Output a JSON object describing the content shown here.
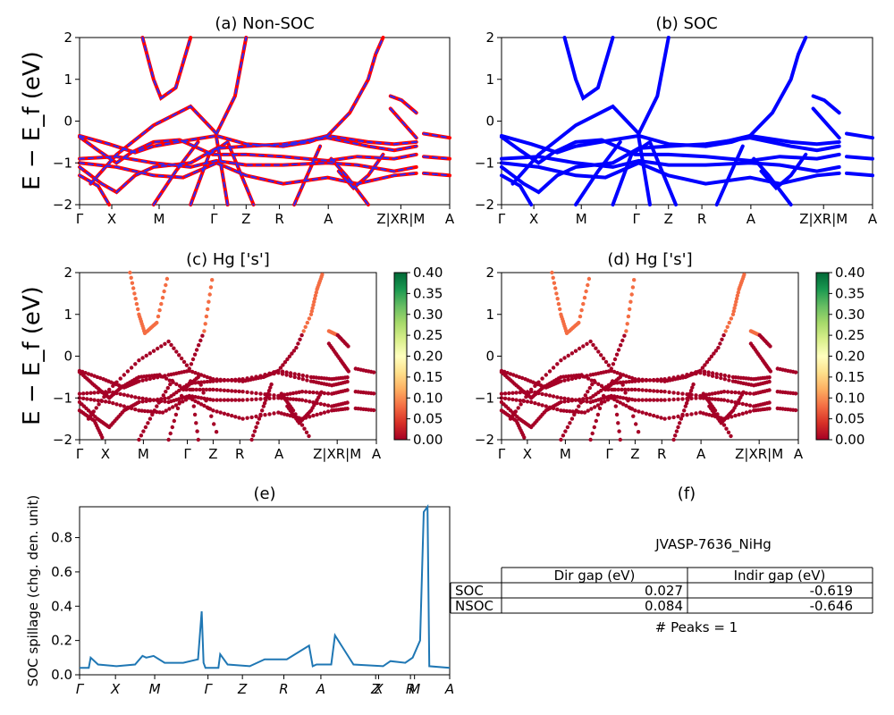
{
  "titles": {
    "a": "(a) Non-SOC",
    "b": "(b) SOC",
    "c": "(c)  Hg ['s']",
    "d": "(d) Hg ['s']",
    "e": "(e)",
    "f": "(f)"
  },
  "band_ylabel": "E − E_f (eV)",
  "band_yticks": [
    "2",
    "1",
    "0",
    "−1",
    "−2"
  ],
  "band_kticks_ab": [
    "Γ",
    "X",
    "M",
    "Γ",
    "Z",
    "R",
    "A",
    "Z|XR|M",
    "A"
  ],
  "band_kticks_cd": [
    "Γ",
    "X",
    "M",
    "Γ",
    "Z",
    "R",
    "A",
    "Z|XR|M",
    "A"
  ],
  "colorbar_ticks": [
    "0.40",
    "0.35",
    "0.30",
    "0.25",
    "0.20",
    "0.15",
    "0.10",
    "0.05",
    "0.00"
  ],
  "colors": {
    "nonsoc_line": "#ff0000",
    "nonsoc_dash": "#2b2bff",
    "soc_line": "#0000ff",
    "spillage_line": "#1f77b4",
    "proj_low": "#a50026",
    "proj_mid": "#f46d43"
  },
  "spillage": {
    "ylabel": "SOC spillage (chg. den. unit)",
    "yticks": [
      "0.8",
      "0.6",
      "0.4",
      "0.2",
      "0.0"
    ],
    "xticks": [
      "Γ",
      "X",
      "M",
      "Γ",
      "Z",
      "R",
      "A",
      "Z",
      "X",
      "R",
      "M",
      "A"
    ]
  },
  "info": {
    "material": "JVASP-7636_NiHg",
    "col_dir": "Dir gap (eV)",
    "col_indir": "Indir gap (eV)",
    "row1_label": "SOC",
    "row1_dir": "0.027",
    "row1_indir": "-0.619",
    "row2_label": "NSOC",
    "row2_dir": "0.084",
    "row2_indir": "-0.646",
    "peaks": "# Peaks = 1"
  },
  "chart_data": {
    "type": "line",
    "xlabel": "",
    "ylabel": "SOC spillage (chg. den. unit)",
    "ylim": [
      0,
      0.98
    ],
    "x": [
      0,
      0.025,
      0.03,
      0.05,
      0.1,
      0.15,
      0.17,
      0.18,
      0.2,
      0.23,
      0.28,
      0.32,
      0.33,
      0.335,
      0.34,
      0.375,
      0.38,
      0.4,
      0.46,
      0.5,
      0.56,
      0.62,
      0.63,
      0.64,
      0.68,
      0.69,
      0.74,
      0.82,
      0.84,
      0.88,
      0.9,
      0.92,
      0.93,
      0.94,
      0.945,
      1.0
    ],
    "series": [
      {
        "values": [
          0.04,
          0.04,
          0.1,
          0.06,
          0.05,
          0.06,
          0.11,
          0.1,
          0.11,
          0.07,
          0.07,
          0.09,
          0.37,
          0.07,
          0.04,
          0.04,
          0.12,
          0.06,
          0.05,
          0.09,
          0.09,
          0.17,
          0.05,
          0.06,
          0.06,
          0.23,
          0.06,
          0.05,
          0.08,
          0.07,
          0.1,
          0.2,
          0.95,
          0.98,
          0.05,
          0.04
        ]
      }
    ]
  }
}
